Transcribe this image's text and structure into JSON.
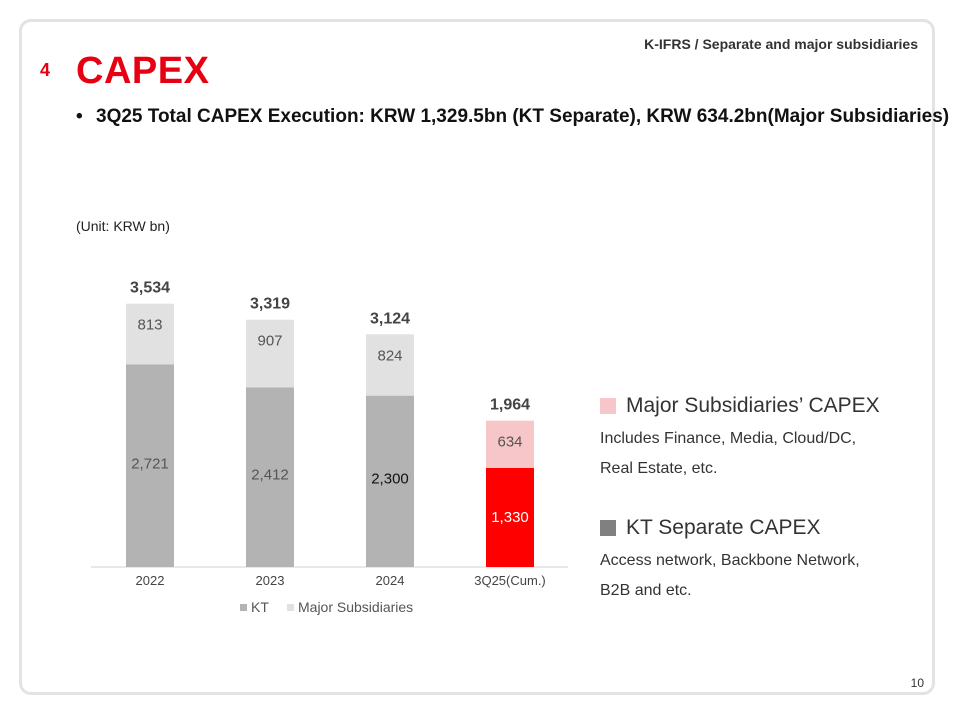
{
  "header": {
    "note": "K-IFRS / Separate and major subsidiaries",
    "section_number": "4",
    "title": "CAPEX",
    "summary": "3Q25 Total CAPEX Execution: KRW 1,329.5bn (KT Separate), KRW 634.2bn(Major Subsidiaries)"
  },
  "unit_label": "(Unit: KRW bn)",
  "colors": {
    "kt": "#b3b3b3",
    "subsidiaries": "#e1e1e1",
    "kt_highlight": "#ff0000",
    "subsidiaries_highlight": "#f7c6c8"
  },
  "chart_data": {
    "type": "bar",
    "stacked": true,
    "categories": [
      "2022",
      "2023",
      "2024",
      "3Q25(Cum.)"
    ],
    "series": [
      {
        "name": "KT",
        "values": [
          2721,
          2412,
          2300,
          1330
        ],
        "labels": [
          "2,721",
          "2,412",
          "2,300",
          "1,330"
        ]
      },
      {
        "name": "Major Subsidiaries",
        "values": [
          813,
          907,
          824,
          634
        ],
        "labels": [
          "813",
          "907",
          "824",
          "634"
        ]
      }
    ],
    "totals": [
      3534,
      3319,
      3124,
      1964
    ],
    "total_labels": [
      "3,534",
      "3,319",
      "3,124",
      "1,964"
    ],
    "highlight_category": "3Q25(Cum.)",
    "legend_position": "bottom",
    "grid": false
  },
  "side_legend": {
    "subsidiaries": {
      "title": "Major Subsidiaries’ CAPEX",
      "desc_line1": "Includes Finance, Media, Cloud/DC,",
      "desc_line2": "Real Estate, etc."
    },
    "kt": {
      "title": "KT Separate CAPEX",
      "desc_line1": "Access network, Backbone Network,",
      "desc_line2": "B2B and etc."
    }
  },
  "page_number": "10"
}
